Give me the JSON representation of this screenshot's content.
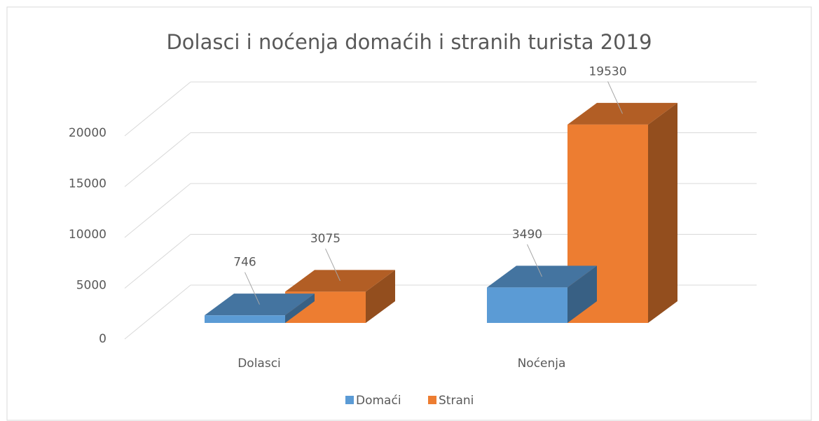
{
  "chart_data": {
    "type": "bar3d",
    "title": "Dolasci i noćenja domaćih i stranih turista 2019",
    "categories": [
      "Dolasci",
      "Noćenja"
    ],
    "series": [
      {
        "name": "Domaći",
        "color": "#5b9bd5",
        "values": [
          746,
          3490
        ]
      },
      {
        "name": "Strani",
        "color": "#ed7d31",
        "values": [
          3075,
          19530
        ]
      }
    ],
    "ylim": [
      0,
      20000
    ],
    "yticks": [
      0,
      5000,
      10000,
      15000,
      20000
    ],
    "grid": true,
    "legend": "bottom"
  }
}
